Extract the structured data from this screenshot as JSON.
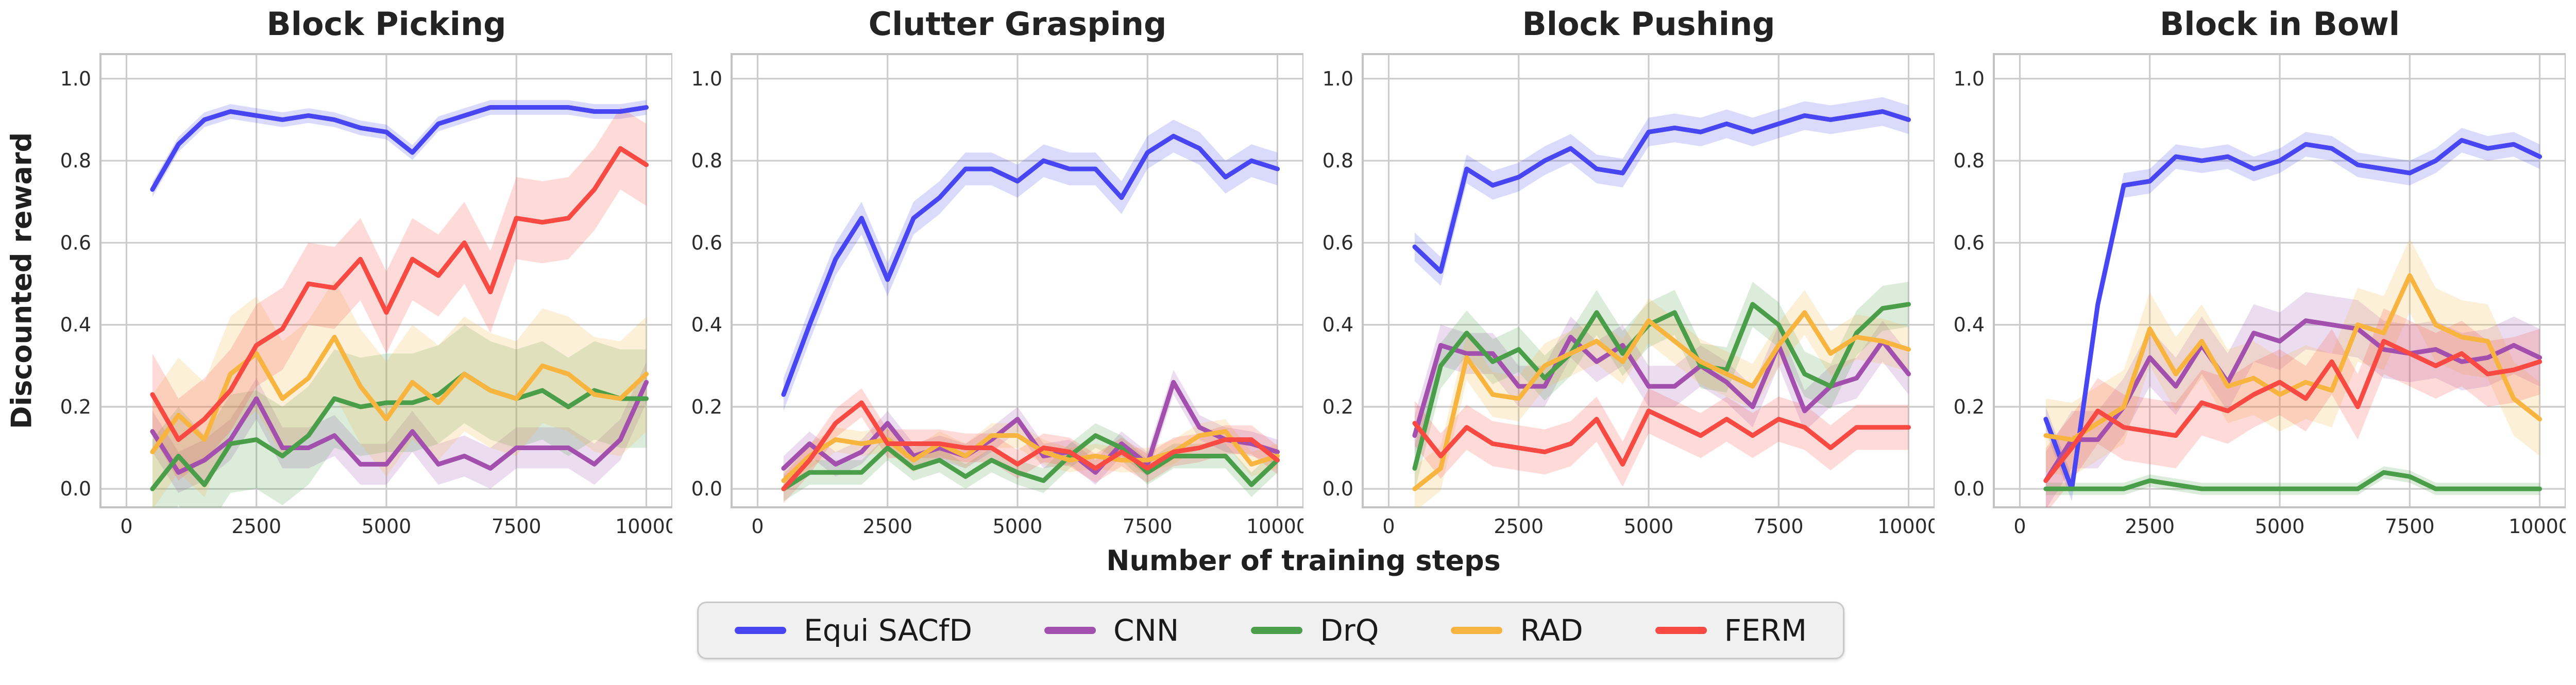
{
  "figure": {
    "ylabel": "Discounted reward",
    "xlabel": "Number of training steps"
  },
  "legend": {
    "items": [
      {
        "label": "Equi SACfD",
        "color": "#4845F3"
      },
      {
        "label": "CNN",
        "color": "#A24FAE"
      },
      {
        "label": "DrQ",
        "color": "#4A9E4A"
      },
      {
        "label": "RAD",
        "color": "#F7B53F"
      },
      {
        "label": "FERM",
        "color": "#F94943"
      }
    ]
  },
  "chart_data": [
    {
      "type": "line",
      "title": "Block Picking",
      "xlabel": "Number of training steps",
      "ylabel": "Discounted reward",
      "x": [
        500,
        1000,
        1500,
        2000,
        2500,
        3000,
        3500,
        4000,
        4500,
        5000,
        5500,
        6000,
        6500,
        7000,
        7500,
        8000,
        8500,
        9000,
        9500,
        10000
      ],
      "xlim": [
        -500,
        10500
      ],
      "ylim": [
        -0.045,
        1.06
      ],
      "xticks": [
        0,
        2500,
        5000,
        7500,
        10000
      ],
      "yticks": [
        0.0,
        0.2,
        0.4,
        0.6,
        0.8,
        1.0
      ],
      "grid": true,
      "series": [
        {
          "name": "Equi SACfD",
          "color": "#4845F3",
          "band": 0.018,
          "values": [
            0.73,
            0.84,
            0.9,
            0.92,
            0.91,
            0.9,
            0.91,
            0.9,
            0.88,
            0.87,
            0.82,
            0.89,
            0.91,
            0.93,
            0.93,
            0.93,
            0.93,
            0.92,
            0.92,
            0.93
          ]
        },
        {
          "name": "CNN",
          "color": "#A24FAE",
          "band": 0.05,
          "values": [
            0.14,
            0.04,
            0.07,
            0.12,
            0.22,
            0.1,
            0.1,
            0.13,
            0.06,
            0.06,
            0.14,
            0.06,
            0.08,
            0.05,
            0.1,
            0.1,
            0.1,
            0.06,
            0.12,
            0.26
          ]
        },
        {
          "name": "DrQ",
          "color": "#4A9E4A",
          "band": 0.12,
          "values": [
            0.0,
            0.08,
            0.01,
            0.11,
            0.12,
            0.08,
            0.13,
            0.22,
            0.2,
            0.21,
            0.21,
            0.23,
            0.28,
            0.24,
            0.22,
            0.24,
            0.2,
            0.24,
            0.22,
            0.22
          ]
        },
        {
          "name": "RAD",
          "color": "#F7B53F",
          "band": 0.14,
          "values": [
            0.09,
            0.18,
            0.12,
            0.28,
            0.33,
            0.22,
            0.27,
            0.37,
            0.25,
            0.17,
            0.26,
            0.21,
            0.28,
            0.24,
            0.22,
            0.3,
            0.28,
            0.23,
            0.22,
            0.28
          ]
        },
        {
          "name": "FERM",
          "color": "#F94943",
          "band": 0.1,
          "values": [
            0.23,
            0.12,
            0.17,
            0.24,
            0.35,
            0.39,
            0.5,
            0.49,
            0.56,
            0.43,
            0.56,
            0.52,
            0.6,
            0.48,
            0.66,
            0.65,
            0.66,
            0.73,
            0.83,
            0.79
          ]
        }
      ]
    },
    {
      "type": "line",
      "title": "Clutter Grasping",
      "xlabel": "Number of training steps",
      "ylabel": "Discounted reward",
      "x": [
        500,
        1000,
        1500,
        2000,
        2500,
        3000,
        3500,
        4000,
        4500,
        5000,
        5500,
        6000,
        6500,
        7000,
        7500,
        8000,
        8500,
        9000,
        9500,
        10000
      ],
      "xlim": [
        -500,
        10500
      ],
      "ylim": [
        -0.045,
        1.06
      ],
      "xticks": [
        0,
        2500,
        5000,
        7500,
        10000
      ],
      "yticks": [
        0.0,
        0.2,
        0.4,
        0.6,
        0.8,
        1.0
      ],
      "grid": true,
      "series": [
        {
          "name": "Equi SACfD",
          "color": "#4845F3",
          "band": 0.04,
          "values": [
            0.23,
            0.4,
            0.56,
            0.66,
            0.51,
            0.66,
            0.71,
            0.78,
            0.78,
            0.75,
            0.8,
            0.78,
            0.78,
            0.71,
            0.82,
            0.86,
            0.83,
            0.76,
            0.8,
            0.78
          ]
        },
        {
          "name": "CNN",
          "color": "#A24FAE",
          "band": 0.03,
          "values": [
            0.05,
            0.11,
            0.06,
            0.09,
            0.16,
            0.08,
            0.1,
            0.08,
            0.12,
            0.17,
            0.08,
            0.09,
            0.04,
            0.11,
            0.06,
            0.26,
            0.15,
            0.12,
            0.11,
            0.09
          ]
        },
        {
          "name": "DrQ",
          "color": "#4A9E4A",
          "band": 0.03,
          "values": [
            0.0,
            0.04,
            0.04,
            0.04,
            0.1,
            0.05,
            0.07,
            0.03,
            0.07,
            0.04,
            0.02,
            0.08,
            0.13,
            0.1,
            0.04,
            0.08,
            0.08,
            0.08,
            0.01,
            0.07
          ]
        },
        {
          "name": "RAD",
          "color": "#F7B53F",
          "band": 0.03,
          "values": [
            0.02,
            0.08,
            0.12,
            0.11,
            0.12,
            0.07,
            0.11,
            0.08,
            0.13,
            0.13,
            0.09,
            0.07,
            0.08,
            0.07,
            0.07,
            0.09,
            0.13,
            0.14,
            0.06,
            0.08
          ]
        },
        {
          "name": "FERM",
          "color": "#F94943",
          "band": 0.035,
          "values": [
            0.0,
            0.07,
            0.16,
            0.21,
            0.11,
            0.11,
            0.11,
            0.1,
            0.1,
            0.06,
            0.1,
            0.09,
            0.05,
            0.09,
            0.05,
            0.09,
            0.1,
            0.12,
            0.12,
            0.07
          ]
        }
      ]
    },
    {
      "type": "line",
      "title": "Block Pushing",
      "xlabel": "Number of training steps",
      "ylabel": "Discounted reward",
      "x": [
        500,
        1000,
        1500,
        2000,
        2500,
        3000,
        3500,
        4000,
        4500,
        5000,
        5500,
        6000,
        6500,
        7000,
        7500,
        8000,
        8500,
        9000,
        9500,
        10000
      ],
      "xlim": [
        -500,
        10500
      ],
      "ylim": [
        -0.045,
        1.06
      ],
      "xticks": [
        0,
        2500,
        5000,
        7500,
        10000
      ],
      "yticks": [
        0.0,
        0.2,
        0.4,
        0.6,
        0.8,
        1.0
      ],
      "grid": true,
      "series": [
        {
          "name": "Equi SACfD",
          "color": "#4845F3",
          "band": 0.035,
          "values": [
            0.59,
            0.53,
            0.78,
            0.74,
            0.76,
            0.8,
            0.83,
            0.78,
            0.77,
            0.87,
            0.88,
            0.87,
            0.89,
            0.87,
            0.89,
            0.91,
            0.9,
            0.91,
            0.92,
            0.9
          ]
        },
        {
          "name": "CNN",
          "color": "#A24FAE",
          "band": 0.05,
          "values": [
            0.13,
            0.35,
            0.33,
            0.33,
            0.25,
            0.25,
            0.37,
            0.31,
            0.35,
            0.25,
            0.25,
            0.3,
            0.26,
            0.2,
            0.35,
            0.19,
            0.25,
            0.27,
            0.36,
            0.28
          ]
        },
        {
          "name": "DrQ",
          "color": "#4A9E4A",
          "band": 0.055,
          "values": [
            0.05,
            0.3,
            0.38,
            0.31,
            0.34,
            0.27,
            0.33,
            0.43,
            0.33,
            0.4,
            0.43,
            0.3,
            0.29,
            0.45,
            0.4,
            0.28,
            0.25,
            0.38,
            0.44,
            0.45
          ]
        },
        {
          "name": "RAD",
          "color": "#F7B53F",
          "band": 0.055,
          "values": [
            0.0,
            0.05,
            0.32,
            0.23,
            0.22,
            0.3,
            0.33,
            0.36,
            0.31,
            0.41,
            0.36,
            0.31,
            0.28,
            0.25,
            0.35,
            0.43,
            0.33,
            0.37,
            0.36,
            0.34
          ]
        },
        {
          "name": "FERM",
          "color": "#F94943",
          "band": 0.055,
          "values": [
            0.16,
            0.08,
            0.15,
            0.11,
            0.1,
            0.09,
            0.11,
            0.17,
            0.06,
            0.19,
            0.16,
            0.13,
            0.17,
            0.13,
            0.17,
            0.15,
            0.1,
            0.15,
            0.15,
            0.15
          ]
        }
      ]
    },
    {
      "type": "line",
      "title": "Block in Bowl",
      "xlabel": "Number of training steps",
      "ylabel": "Discounted reward",
      "x": [
        500,
        1000,
        1500,
        2000,
        2500,
        3000,
        3500,
        4000,
        4500,
        5000,
        5500,
        6000,
        6500,
        7000,
        7500,
        8000,
        8500,
        9000,
        9500,
        10000
      ],
      "xlim": [
        -500,
        10500
      ],
      "ylim": [
        -0.045,
        1.06
      ],
      "xticks": [
        0,
        2500,
        5000,
        7500,
        10000
      ],
      "yticks": [
        0.0,
        0.2,
        0.4,
        0.6,
        0.8,
        1.0
      ],
      "grid": true,
      "series": [
        {
          "name": "Equi SACfD",
          "color": "#4845F3",
          "band": 0.03,
          "values": [
            0.17,
            0.0,
            0.45,
            0.74,
            0.75,
            0.81,
            0.8,
            0.81,
            0.78,
            0.8,
            0.84,
            0.83,
            0.79,
            0.78,
            0.77,
            0.8,
            0.85,
            0.83,
            0.84,
            0.81
          ]
        },
        {
          "name": "CNN",
          "color": "#A24FAE",
          "band": 0.07,
          "values": [
            0.02,
            0.12,
            0.12,
            0.2,
            0.32,
            0.25,
            0.35,
            0.26,
            0.38,
            0.36,
            0.41,
            0.4,
            0.39,
            0.34,
            0.33,
            0.34,
            0.31,
            0.32,
            0.35,
            0.32
          ]
        },
        {
          "name": "DrQ",
          "color": "#4A9E4A",
          "band": 0.015,
          "values": [
            0.0,
            0.0,
            0.0,
            0.0,
            0.02,
            0.01,
            0.0,
            0.0,
            0.0,
            0.0,
            0.0,
            0.0,
            0.0,
            0.04,
            0.03,
            0.0,
            0.0,
            0.0,
            0.0,
            0.0
          ]
        },
        {
          "name": "RAD",
          "color": "#F7B53F",
          "band": 0.09,
          "values": [
            0.13,
            0.12,
            0.16,
            0.2,
            0.39,
            0.28,
            0.36,
            0.25,
            0.27,
            0.23,
            0.26,
            0.24,
            0.4,
            0.38,
            0.52,
            0.4,
            0.37,
            0.36,
            0.22,
            0.17
          ]
        },
        {
          "name": "FERM",
          "color": "#F94943",
          "band": 0.08,
          "values": [
            0.02,
            0.1,
            0.19,
            0.15,
            0.14,
            0.13,
            0.21,
            0.19,
            0.23,
            0.26,
            0.22,
            0.31,
            0.2,
            0.36,
            0.33,
            0.3,
            0.33,
            0.28,
            0.29,
            0.31
          ]
        }
      ]
    }
  ]
}
